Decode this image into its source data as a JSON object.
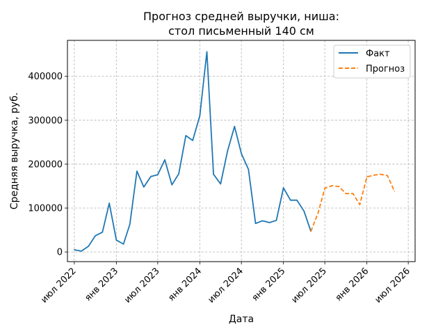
{
  "chart_data": {
    "type": "line",
    "title_line1": "Прогноз средней выручки, ниша:",
    "title_line2": "стол письменный 140 см",
    "xlabel": "Дата",
    "ylabel": "Средняя выручка, руб.",
    "ylim": [
      -22000,
      482000
    ],
    "xlim": [
      "2022-06-01",
      "2026-07-31"
    ],
    "grid": true,
    "grid_style": "dashed",
    "legend_position": "top-right",
    "x_ticks": [
      {
        "date": "2022-07-01",
        "label": "июл 2022"
      },
      {
        "date": "2023-01-01",
        "label": "янв 2023"
      },
      {
        "date": "2023-07-01",
        "label": "июл 2023"
      },
      {
        "date": "2024-01-01",
        "label": "янв 2024"
      },
      {
        "date": "2024-07-01",
        "label": "июл 2024"
      },
      {
        "date": "2025-01-01",
        "label": "янв 2025"
      },
      {
        "date": "2025-07-01",
        "label": "июл 2025"
      },
      {
        "date": "2026-01-01",
        "label": "янв 2026"
      },
      {
        "date": "2026-07-01",
        "label": "июл 2026"
      }
    ],
    "y_ticks": [
      {
        "value": 0,
        "label": "0"
      },
      {
        "value": 100000,
        "label": "100000"
      },
      {
        "value": 200000,
        "label": "200000"
      },
      {
        "value": 300000,
        "label": "300000"
      },
      {
        "value": 400000,
        "label": "400000"
      }
    ],
    "series": [
      {
        "name": "Факт",
        "color": "#1f77b4",
        "style": "solid",
        "points": [
          {
            "x": "2022-07-01",
            "y": 5000
          },
          {
            "x": "2022-08-01",
            "y": 2000
          },
          {
            "x": "2022-09-01",
            "y": 13000
          },
          {
            "x": "2022-10-01",
            "y": 37000
          },
          {
            "x": "2022-11-01",
            "y": 45000
          },
          {
            "x": "2022-12-01",
            "y": 111000
          },
          {
            "x": "2023-01-01",
            "y": 27000
          },
          {
            "x": "2023-02-01",
            "y": 18000
          },
          {
            "x": "2023-03-01",
            "y": 63000
          },
          {
            "x": "2023-04-01",
            "y": 184000
          },
          {
            "x": "2023-05-01",
            "y": 148000
          },
          {
            "x": "2023-06-01",
            "y": 172000
          },
          {
            "x": "2023-07-01",
            "y": 176000
          },
          {
            "x": "2023-08-01",
            "y": 210000
          },
          {
            "x": "2023-09-01",
            "y": 153000
          },
          {
            "x": "2023-10-01",
            "y": 178000
          },
          {
            "x": "2023-11-01",
            "y": 265000
          },
          {
            "x": "2023-12-01",
            "y": 254000
          },
          {
            "x": "2024-01-01",
            "y": 310000
          },
          {
            "x": "2024-02-01",
            "y": 456000
          },
          {
            "x": "2024-03-01",
            "y": 177000
          },
          {
            "x": "2024-04-01",
            "y": 155000
          },
          {
            "x": "2024-05-01",
            "y": 229000
          },
          {
            "x": "2024-06-01",
            "y": 286000
          },
          {
            "x": "2024-07-01",
            "y": 224000
          },
          {
            "x": "2024-08-01",
            "y": 188000
          },
          {
            "x": "2024-09-01",
            "y": 65000
          },
          {
            "x": "2024-10-01",
            "y": 71000
          },
          {
            "x": "2024-11-01",
            "y": 67000
          },
          {
            "x": "2024-12-01",
            "y": 72000
          },
          {
            "x": "2025-01-01",
            "y": 146000
          },
          {
            "x": "2025-02-01",
            "y": 118000
          },
          {
            "x": "2025-03-01",
            "y": 118000
          },
          {
            "x": "2025-04-01",
            "y": 93000
          },
          {
            "x": "2025-05-01",
            "y": 47000
          }
        ]
      },
      {
        "name": "Прогноз",
        "color": "#ff7f0e",
        "style": "dashed",
        "points": [
          {
            "x": "2025-05-01",
            "y": 47000
          },
          {
            "x": "2025-06-01",
            "y": 88000
          },
          {
            "x": "2025-07-01",
            "y": 145000
          },
          {
            "x": "2025-08-01",
            "y": 151000
          },
          {
            "x": "2025-09-01",
            "y": 149000
          },
          {
            "x": "2025-10-01",
            "y": 133000
          },
          {
            "x": "2025-11-01",
            "y": 133000
          },
          {
            "x": "2025-12-01",
            "y": 108000
          },
          {
            "x": "2026-01-01",
            "y": 171000
          },
          {
            "x": "2026-02-01",
            "y": 175000
          },
          {
            "x": "2026-03-01",
            "y": 177000
          },
          {
            "x": "2026-04-01",
            "y": 174000
          },
          {
            "x": "2026-05-01",
            "y": 139000
          }
        ]
      }
    ]
  }
}
